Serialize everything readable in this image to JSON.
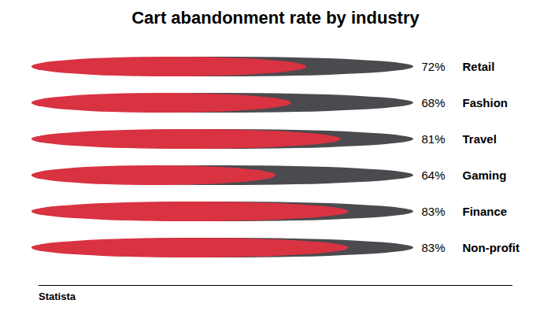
{
  "chart_data": {
    "type": "bar",
    "orientation": "horizontal",
    "title": "Cart abandonment rate by industry",
    "categories": [
      "Retail",
      "Fashion",
      "Travel",
      "Gaming",
      "Finance",
      "Non-profit"
    ],
    "values": [
      72,
      68,
      81,
      64,
      83,
      83
    ],
    "value_labels": [
      "72%",
      "68%",
      "81%",
      "64%",
      "83%",
      "83%"
    ],
    "color": "#D93241",
    "xlim": [
      0,
      100
    ],
    "tick_labels": false,
    "data_labels": true,
    "annotations": [
      "Statista"
    ]
  }
}
